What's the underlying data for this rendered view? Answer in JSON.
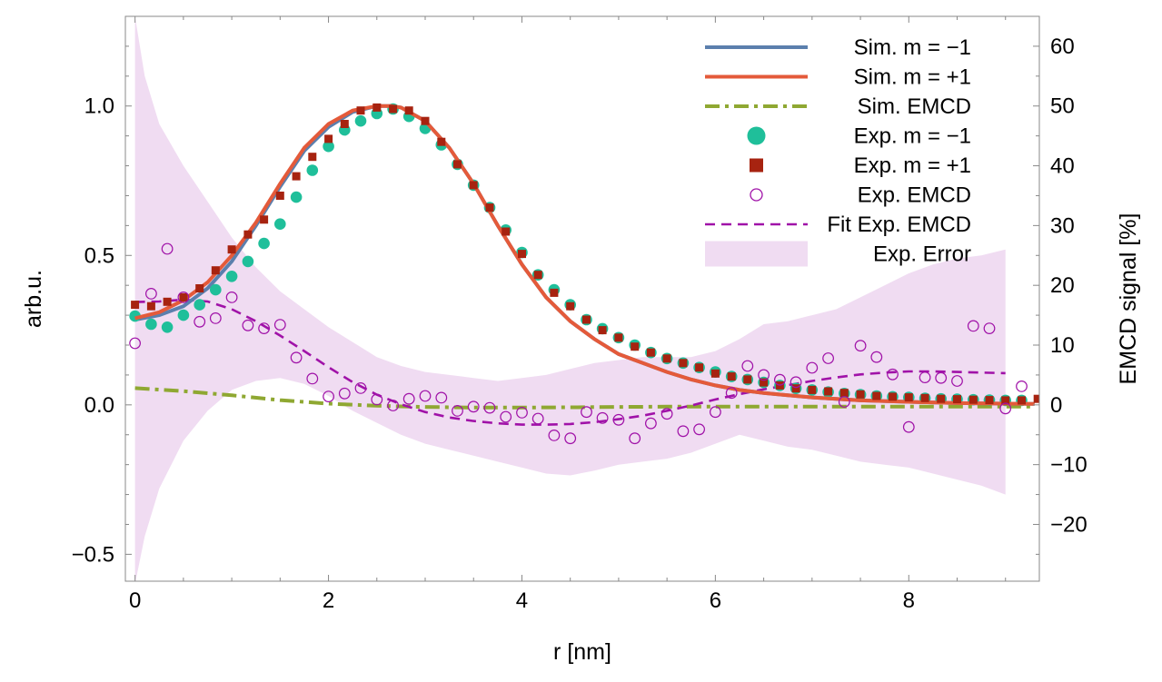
{
  "chart_data": {
    "type": "line",
    "title": "",
    "xlabel": "r [nm]",
    "ylabel": "arb.u.",
    "y2label": "EMCD signal [%]",
    "xlim": [
      -0.1,
      9.35
    ],
    "ylim": [
      -0.59,
      1.3
    ],
    "y2lim": [
      -29.5,
      65
    ],
    "grid": false,
    "legend_position": "top-right",
    "x_ticks": [
      0,
      2,
      4,
      6,
      8
    ],
    "x_tick_labels": [
      "0",
      "2",
      "4",
      "6",
      "8"
    ],
    "y_ticks": [
      -0.5,
      0.0,
      0.5,
      1.0
    ],
    "y_tick_labels": [
      "−0.5",
      "0.0",
      "0.5",
      "1.0"
    ],
    "y2_ticks": [
      -20,
      -10,
      0,
      10,
      20,
      30,
      40,
      50,
      60
    ],
    "y2_tick_labels": [
      "−20",
      "−10",
      "0",
      "10",
      "20",
      "30",
      "40",
      "50",
      "60"
    ],
    "colors": {
      "sim_m_minus": "#5b7fad",
      "sim_m_plus": "#e45a3a",
      "sim_emcd": "#8fa832",
      "exp_m_minus": "#1fbf9a",
      "exp_m_plus": "#a72310",
      "exp_emcd": "#a012a8",
      "fit_emcd": "#a012a8",
      "error_band": "#f0dcf2"
    },
    "legend": [
      {
        "label": "Sim. m = −1",
        "key": "sim_m_minus",
        "style": "line"
      },
      {
        "label": "Sim. m = +1",
        "key": "sim_m_plus",
        "style": "line"
      },
      {
        "label": "Sim. EMCD",
        "key": "sim_emcd",
        "style": "dashdot"
      },
      {
        "label": "Exp. m = −1",
        "key": "exp_m_minus",
        "style": "circle"
      },
      {
        "label": "Exp. m = +1",
        "key": "exp_m_plus",
        "style": "square"
      },
      {
        "label": "Exp. EMCD",
        "key": "exp_emcd",
        "style": "open-circle"
      },
      {
        "label": "Fit Exp. EMCD",
        "key": "fit_emcd",
        "style": "dashed"
      },
      {
        "label": "Exp. Error",
        "key": "error_band",
        "style": "band"
      }
    ],
    "series": [
      {
        "name": "Sim. m = −1",
        "axis": "left",
        "kind": "line",
        "x": [
          0,
          0.25,
          0.5,
          0.75,
          1.0,
          1.25,
          1.5,
          1.75,
          2.0,
          2.25,
          2.5,
          2.65,
          2.75,
          3.0,
          3.25,
          3.5,
          3.75,
          4.0,
          4.25,
          4.5,
          4.75,
          5.0,
          5.25,
          5.5,
          5.75,
          6.0,
          6.25,
          6.5,
          6.75,
          7.0,
          7.5,
          8.0,
          8.5,
          9.0,
          9.3
        ],
        "y": [
          0.285,
          0.3,
          0.33,
          0.39,
          0.48,
          0.6,
          0.73,
          0.85,
          0.93,
          0.98,
          1.0,
          1.0,
          0.995,
          0.95,
          0.86,
          0.74,
          0.6,
          0.47,
          0.36,
          0.28,
          0.22,
          0.17,
          0.14,
          0.11,
          0.085,
          0.065,
          0.05,
          0.04,
          0.032,
          0.025,
          0.015,
          0.01,
          0.006,
          0.004,
          0.003
        ]
      },
      {
        "name": "Sim. m = +1",
        "axis": "left",
        "kind": "line",
        "x": [
          0,
          0.25,
          0.5,
          0.75,
          1.0,
          1.25,
          1.5,
          1.75,
          2.0,
          2.25,
          2.5,
          2.65,
          2.75,
          3.0,
          3.25,
          3.5,
          3.75,
          4.0,
          4.25,
          4.5,
          4.75,
          5.0,
          5.25,
          5.5,
          5.75,
          6.0,
          6.25,
          6.5,
          6.75,
          7.0,
          7.5,
          8.0,
          8.5,
          9.0,
          9.3
        ],
        "y": [
          0.29,
          0.31,
          0.35,
          0.41,
          0.5,
          0.61,
          0.74,
          0.86,
          0.94,
          0.985,
          1.0,
          1.0,
          0.995,
          0.95,
          0.86,
          0.74,
          0.6,
          0.47,
          0.36,
          0.28,
          0.22,
          0.17,
          0.14,
          0.11,
          0.085,
          0.065,
          0.05,
          0.04,
          0.032,
          0.025,
          0.015,
          0.01,
          0.006,
          0.004,
          0.003
        ]
      },
      {
        "name": "Sim. EMCD",
        "axis": "right",
        "kind": "dashdot",
        "x": [
          0,
          0.5,
          1.0,
          1.5,
          2.0,
          2.5,
          3.0,
          3.5,
          4.0,
          4.5,
          5.0,
          5.5,
          6.0,
          6.5,
          7.0,
          7.5,
          8.0,
          8.5,
          9.0,
          9.3
        ],
        "y": [
          2.8,
          2.3,
          1.6,
          0.8,
          0.2,
          -0.15,
          -0.35,
          -0.45,
          -0.45,
          -0.4,
          -0.35,
          -0.3,
          -0.3,
          -0.3,
          -0.3,
          -0.3,
          -0.3,
          -0.3,
          -0.3,
          -0.3
        ]
      },
      {
        "name": "Exp. m = −1",
        "axis": "left",
        "kind": "circle",
        "x": [
          0.0,
          0.167,
          0.333,
          0.5,
          0.667,
          0.833,
          1.0,
          1.167,
          1.333,
          1.5,
          1.667,
          1.833,
          2.0,
          2.167,
          2.333,
          2.5,
          2.667,
          2.833,
          3.0,
          3.167,
          3.333,
          3.5,
          3.667,
          3.833,
          4.0,
          4.167,
          4.333,
          4.5,
          4.667,
          4.833,
          5.0,
          5.167,
          5.333,
          5.5,
          5.667,
          5.833,
          6.0,
          6.167,
          6.333,
          6.5,
          6.667,
          6.833,
          7.0,
          7.167,
          7.333,
          7.5,
          7.667,
          7.833,
          8.0,
          8.167,
          8.333,
          8.5,
          8.667,
          8.833,
          9.0,
          9.167
        ],
        "y": [
          0.297,
          0.27,
          0.26,
          0.3,
          0.335,
          0.385,
          0.43,
          0.48,
          0.54,
          0.605,
          0.695,
          0.785,
          0.865,
          0.92,
          0.95,
          0.975,
          0.99,
          0.965,
          0.925,
          0.87,
          0.805,
          0.735,
          0.66,
          0.585,
          0.51,
          0.435,
          0.385,
          0.335,
          0.285,
          0.255,
          0.225,
          0.2,
          0.175,
          0.155,
          0.14,
          0.125,
          0.11,
          0.095,
          0.085,
          0.075,
          0.065,
          0.055,
          0.05,
          0.043,
          0.038,
          0.034,
          0.03,
          0.027,
          0.025,
          0.022,
          0.02,
          0.019,
          0.017,
          0.016,
          0.015,
          0.015
        ]
      },
      {
        "name": "Exp. m = +1",
        "axis": "left",
        "kind": "square",
        "x": [
          0.0,
          0.167,
          0.333,
          0.5,
          0.667,
          0.833,
          1.0,
          1.167,
          1.333,
          1.5,
          1.667,
          1.833,
          2.0,
          2.167,
          2.333,
          2.5,
          2.667,
          2.833,
          3.0,
          3.167,
          3.333,
          3.5,
          3.667,
          3.833,
          4.0,
          4.167,
          4.333,
          4.5,
          4.667,
          4.833,
          5.0,
          5.167,
          5.333,
          5.5,
          5.667,
          5.833,
          6.0,
          6.167,
          6.333,
          6.5,
          6.667,
          6.833,
          7.0,
          7.167,
          7.333,
          7.5,
          7.667,
          7.833,
          8.0,
          8.167,
          8.333,
          8.5,
          8.667,
          8.833,
          9.0,
          9.167,
          9.333
        ],
        "y": [
          0.335,
          0.33,
          0.345,
          0.36,
          0.39,
          0.45,
          0.52,
          0.57,
          0.62,
          0.7,
          0.765,
          0.83,
          0.89,
          0.94,
          0.985,
          0.995,
          0.99,
          0.985,
          0.95,
          0.88,
          0.805,
          0.735,
          0.66,
          0.58,
          0.505,
          0.435,
          0.375,
          0.33,
          0.285,
          0.25,
          0.225,
          0.195,
          0.175,
          0.155,
          0.14,
          0.125,
          0.105,
          0.095,
          0.085,
          0.075,
          0.065,
          0.055,
          0.05,
          0.045,
          0.04,
          0.035,
          0.03,
          0.027,
          0.025,
          0.023,
          0.02,
          0.019,
          0.017,
          0.016,
          0.015,
          0.015,
          0.02
        ]
      },
      {
        "name": "Exp. EMCD",
        "axis": "right",
        "kind": "open-circle",
        "x": [
          0.0,
          0.167,
          0.333,
          0.5,
          0.667,
          0.833,
          1.0,
          1.167,
          1.333,
          1.5,
          1.667,
          1.833,
          2.0,
          2.167,
          2.333,
          2.5,
          2.667,
          2.833,
          3.0,
          3.167,
          3.333,
          3.5,
          3.667,
          3.833,
          4.0,
          4.167,
          4.333,
          4.5,
          4.667,
          4.833,
          5.0,
          5.167,
          5.333,
          5.5,
          5.667,
          5.833,
          6.0,
          6.167,
          6.333,
          6.5,
          6.667,
          6.833,
          7.0,
          7.167,
          7.333,
          7.5,
          7.667,
          7.833,
          8.0,
          8.167,
          8.333,
          8.5,
          8.667,
          8.833,
          9.0,
          9.167
        ],
        "y": [
          10.3,
          18.6,
          26.1,
          18.0,
          13.9,
          14.5,
          18.0,
          13.3,
          12.8,
          13.4,
          7.9,
          4.4,
          1.4,
          1.9,
          2.8,
          0.9,
          -0.1,
          1.0,
          1.5,
          1.2,
          -1.0,
          -0.3,
          -0.5,
          -2.0,
          -1.3,
          -2.3,
          -5.1,
          -5.6,
          -1.2,
          -2.2,
          -2.5,
          -5.6,
          -3.1,
          -1.5,
          -4.4,
          -4.1,
          -1.2,
          2.0,
          6.5,
          5.0,
          4.2,
          3.8,
          6.2,
          7.8,
          0.5,
          9.9,
          8.0,
          5.1,
          -3.7,
          4.6,
          4.5,
          4.0,
          13.2,
          12.8,
          -0.6,
          3.1
        ]
      },
      {
        "name": "Fit Exp. EMCD",
        "axis": "right",
        "kind": "dashed",
        "x": [
          0,
          0.25,
          0.5,
          0.75,
          1.0,
          1.25,
          1.5,
          1.75,
          2.0,
          2.25,
          2.5,
          2.75,
          3.0,
          3.25,
          3.5,
          3.75,
          4.0,
          4.25,
          4.5,
          4.75,
          5.0,
          5.25,
          5.5,
          5.75,
          6.0,
          6.25,
          6.5,
          6.75,
          7.0,
          7.25,
          7.5,
          7.75,
          8.0,
          8.25,
          8.5,
          8.75,
          9.0
        ],
        "y": [
          17.2,
          17.3,
          17.6,
          17.3,
          16.0,
          14.0,
          11.6,
          9.0,
          6.3,
          3.8,
          1.7,
          0.1,
          -1.2,
          -2.1,
          -2.7,
          -3.1,
          -3.3,
          -3.3,
          -3.2,
          -2.9,
          -2.4,
          -1.8,
          -1.0,
          -0.1,
          0.9,
          1.8,
          2.6,
          3.3,
          4.0,
          4.6,
          5.1,
          5.4,
          5.6,
          5.6,
          5.5,
          5.4,
          5.3
        ]
      },
      {
        "name": "Exp. Error",
        "axis": "right",
        "kind": "band",
        "x": [
          0.0,
          0.1,
          0.25,
          0.5,
          0.75,
          1.0,
          1.25,
          1.5,
          1.75,
          2.0,
          2.25,
          2.5,
          2.75,
          3.0,
          3.25,
          3.5,
          3.75,
          4.0,
          4.25,
          4.5,
          4.75,
          5.0,
          5.25,
          5.5,
          5.75,
          6.0,
          6.25,
          6.5,
          6.75,
          7.0,
          7.25,
          7.5,
          7.75,
          8.0,
          8.25,
          8.5,
          8.75,
          9.0
        ],
        "upper": [
          65.0,
          55.0,
          47.0,
          40.0,
          34.0,
          28.0,
          23.0,
          19.0,
          16.0,
          13.0,
          10.5,
          8.0,
          6.5,
          5.5,
          5.0,
          4.5,
          4.0,
          4.5,
          5.0,
          6.0,
          7.0,
          7.5,
          8.0,
          8.0,
          8.0,
          9.0,
          11.0,
          13.5,
          14.0,
          15.0,
          16.0,
          18.0,
          20.0,
          22.0,
          23.5,
          24.5,
          25.0,
          26.0
        ],
        "lower": [
          -30.0,
          -22.0,
          -14.0,
          -6.0,
          -1.0,
          2.5,
          4.0,
          4.5,
          3.5,
          1.5,
          -1.0,
          -3.0,
          -5.0,
          -6.5,
          -7.5,
          -8.5,
          -9.5,
          -10.5,
          -11.5,
          -11.8,
          -11.0,
          -10.0,
          -9.5,
          -9.0,
          -8.0,
          -6.5,
          -5.0,
          -6.0,
          -7.0,
          -7.5,
          -8.5,
          -9.5,
          -10.0,
          -10.5,
          -11.5,
          -12.5,
          -13.5,
          -15.0
        ]
      }
    ]
  }
}
